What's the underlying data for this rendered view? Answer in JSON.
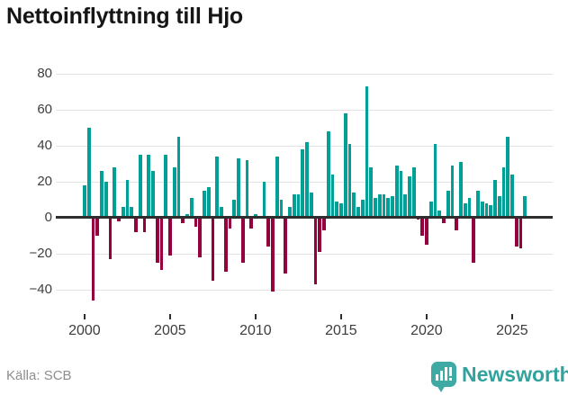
{
  "title": "Nettoinflyttning till Hjo",
  "footer": {
    "source": "Källa: SCB",
    "brand": "Newsworthy"
  },
  "colors": {
    "positive": "#00A096",
    "negative": "#94003D",
    "axis": "#2e2e2e",
    "grid": "#e3e3e3",
    "title": "#151515",
    "tick_label": "#3d3d3d",
    "source_text": "#8d8d8d",
    "brand_teal": "#31A29D",
    "badge_teal": "#3FA9A4"
  },
  "chart_data": {
    "type": "bar",
    "title": "Nettoinflyttning till Hjo",
    "frequency": "quarterly",
    "start_year": 2000,
    "start_quarter": 1,
    "end_year": 2025,
    "end_quarter": 4,
    "grid": true,
    "legend": false,
    "ylim": [
      -50,
      88
    ],
    "y_ticks": [
      80,
      60,
      40,
      20,
      0,
      -20,
      -40
    ],
    "y_tick_labels": [
      "80",
      "60",
      "40",
      "20",
      "0",
      "−20",
      "−40"
    ],
    "x_tick_years": [
      "2000",
      "2005",
      "2010",
      "2015",
      "2020",
      "2025"
    ],
    "series": [
      {
        "name": "Nettoinflyttning",
        "values": [
          18,
          50,
          -46,
          -10,
          26,
          20,
          -23,
          28,
          -2,
          6,
          21,
          6,
          -8,
          35,
          -8,
          35,
          26,
          -25,
          -29,
          35,
          -21,
          28,
          45,
          -3,
          2,
          11,
          -5,
          -22,
          15,
          17,
          -35,
          34,
          6,
          -30,
          -6,
          10,
          33,
          -25,
          32,
          -6,
          2,
          0,
          20,
          -16,
          -41,
          34,
          10,
          -31,
          6,
          13,
          13,
          38,
          42,
          14,
          -37,
          -19,
          -7,
          48,
          24,
          9,
          8,
          58,
          41,
          14,
          6,
          10,
          73,
          28,
          11,
          13,
          13,
          11,
          12,
          29,
          26,
          13,
          23,
          28,
          -1,
          -10,
          -15,
          9,
          41,
          4,
          -3,
          15,
          29,
          -7,
          31,
          8,
          11,
          -25,
          15,
          9,
          8,
          7,
          21,
          12,
          28,
          45,
          24,
          -16,
          -17,
          12
        ]
      }
    ]
  }
}
